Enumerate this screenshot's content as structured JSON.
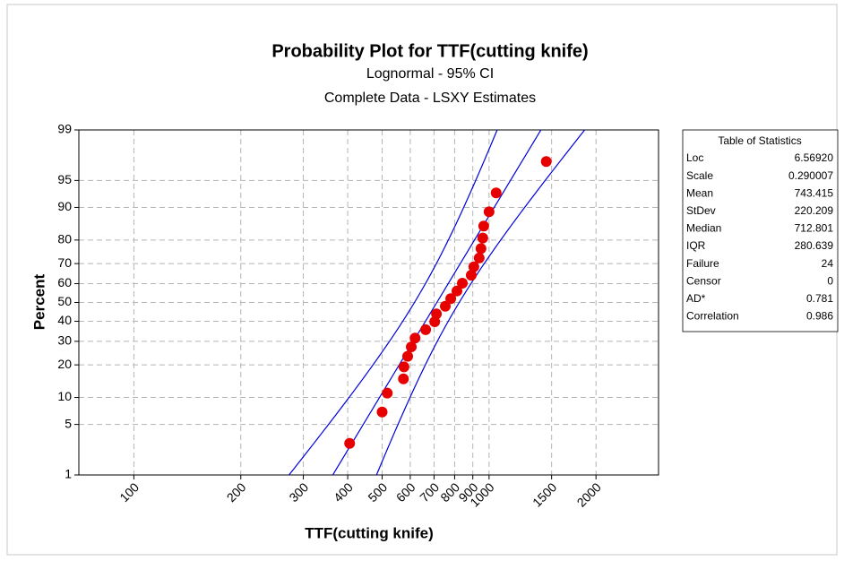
{
  "chart_data": {
    "type": "probability",
    "title": "Probability Plot for TTF(cutting knife)",
    "subtitle": [
      "Lognormal - 95% CI",
      "Complete Data - LSXY Estimates"
    ],
    "xlabel": "TTF(cutting knife)",
    "ylabel": "Percent",
    "xscale": "log",
    "yscale": "probability",
    "xlim": [
      70,
      3000
    ],
    "ylim": [
      1,
      99
    ],
    "xticks": [
      100,
      200,
      300,
      400,
      500,
      600,
      700,
      800,
      900,
      1000,
      1500,
      2000
    ],
    "yticks": [
      1,
      5,
      10,
      20,
      30,
      40,
      50,
      60,
      70,
      80,
      90,
      95,
      99
    ],
    "grid": true,
    "point_color": "#e60000",
    "line_color": "#0000dd",
    "x": [
      405,
      500,
      517,
      574,
      576,
      590,
      604,
      619,
      663,
      703,
      711,
      753,
      780,
      812,
      841,
      891,
      906,
      938,
      949,
      960,
      966,
      1000,
      1047,
      1449
    ],
    "values": [
      2.87,
      6.97,
      11.07,
      15.16,
      19.26,
      23.36,
      27.46,
      31.56,
      35.66,
      39.75,
      43.85,
      47.95,
      52.05,
      56.15,
      60.25,
      64.34,
      68.44,
      72.54,
      76.64,
      80.74,
      84.84,
      88.93,
      93.03,
      97.13
    ],
    "stats_title": "Table of Statistics",
    "stats": [
      {
        "name": "Loc",
        "value": 6.5692,
        "label": "6.56920"
      },
      {
        "name": "Scale",
        "value": 0.290007
      },
      {
        "name": "Mean",
        "value": 743.415
      },
      {
        "name": "StDev",
        "value": 220.209
      },
      {
        "name": "Median",
        "value": 712.801
      },
      {
        "name": "IQR",
        "value": 280.639
      },
      {
        "name": "Failure",
        "value": 24
      },
      {
        "name": "Censor",
        "value": 0
      },
      {
        "name": "AD*",
        "value": 0.781
      },
      {
        "name": "Correlation",
        "value": 0.986
      }
    ]
  }
}
